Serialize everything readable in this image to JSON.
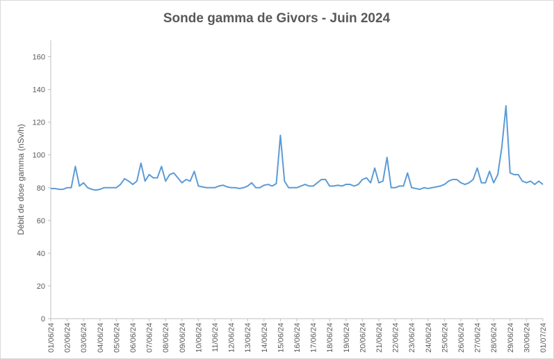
{
  "chart_data": {
    "type": "line",
    "title": "Sonde gamma de Givors - Juin 2024",
    "y_label": "Débit de dose gamma (nSv/h)",
    "x": [
      0,
      0.25,
      0.5,
      0.75,
      1,
      1.25,
      1.5,
      1.75,
      2,
      2.25,
      2.5,
      2.75,
      3,
      3.25,
      3.5,
      3.75,
      4,
      4.25,
      4.5,
      4.75,
      5,
      5.25,
      5.5,
      5.75,
      6,
      6.25,
      6.5,
      6.75,
      7,
      7.25,
      7.5,
      7.75,
      8,
      8.25,
      8.5,
      8.75,
      9,
      9.25,
      9.5,
      9.75,
      10,
      10.25,
      10.5,
      10.75,
      11,
      11.25,
      11.5,
      11.75,
      12,
      12.25,
      12.5,
      12.75,
      13,
      13.25,
      13.5,
      13.75,
      14,
      14.25,
      14.5,
      14.75,
      15,
      15.25,
      15.5,
      15.75,
      16,
      16.25,
      16.5,
      16.75,
      17,
      17.25,
      17.5,
      17.75,
      18,
      18.25,
      18.5,
      18.75,
      19,
      19.25,
      19.5,
      19.75,
      20,
      20.25,
      20.5,
      20.75,
      21,
      21.25,
      21.5,
      21.75,
      22,
      22.25,
      22.5,
      22.75,
      23,
      23.25,
      23.5,
      23.75,
      24,
      24.25,
      24.5,
      24.75,
      25,
      25.25,
      25.5,
      25.75,
      26,
      26.25,
      26.5,
      26.75,
      27,
      27.25,
      27.5,
      27.75,
      28,
      28.25,
      28.5,
      28.75,
      29,
      29.25,
      29.5,
      29.75,
      30
    ],
    "series": [
      {
        "name": "Débit de dose gamma",
        "color": "#5b9bd5",
        "values": [
          79.5,
          79.5,
          79,
          79,
          80,
          80,
          93,
          81,
          83,
          80,
          79,
          78.5,
          79,
          80,
          80,
          80,
          80,
          82,
          85.5,
          84,
          82,
          84,
          95,
          84,
          88,
          86,
          86,
          93,
          84,
          88,
          89,
          86,
          83,
          85,
          84,
          90,
          81,
          80.5,
          80,
          80,
          80,
          81,
          81.5,
          80.5,
          80,
          80,
          79.5,
          80,
          81,
          83,
          80,
          80,
          81.5,
          82,
          81,
          82.5,
          112,
          84,
          80,
          80,
          80,
          81,
          82,
          81,
          81,
          83,
          85,
          85,
          81,
          81,
          81.5,
          81,
          82,
          82,
          81,
          82,
          85,
          86,
          83,
          92,
          83,
          84,
          98.5,
          80,
          80,
          81,
          81,
          89,
          80,
          79.5,
          79,
          80,
          79.5,
          80,
          80.5,
          81,
          82,
          84,
          85,
          85,
          83,
          82,
          83,
          85,
          92,
          83,
          83,
          90,
          83,
          88,
          105,
          130,
          89,
          88,
          88,
          84,
          83,
          84,
          82,
          84,
          82
        ]
      }
    ],
    "xlim": [
      0,
      30
    ],
    "xticks": [
      {
        "value": 0,
        "label": "01/06/24"
      },
      {
        "value": 1,
        "label": "02/06/24"
      },
      {
        "value": 2,
        "label": "03/06/24"
      },
      {
        "value": 3,
        "label": "04/06/24"
      },
      {
        "value": 4,
        "label": "05/06/24"
      },
      {
        "value": 5,
        "label": "06/06/24"
      },
      {
        "value": 6,
        "label": "07/06/24"
      },
      {
        "value": 7,
        "label": "08/06/24"
      },
      {
        "value": 8,
        "label": "09/06/24"
      },
      {
        "value": 9,
        "label": "10/06/24"
      },
      {
        "value": 10,
        "label": "11/06/24"
      },
      {
        "value": 11,
        "label": "12/06/24"
      },
      {
        "value": 12,
        "label": "13/06/24"
      },
      {
        "value": 13,
        "label": "14/06/24"
      },
      {
        "value": 14,
        "label": "15/06/24"
      },
      {
        "value": 15,
        "label": "16/06/24"
      },
      {
        "value": 16,
        "label": "17/06/24"
      },
      {
        "value": 17,
        "label": "18/06/24"
      },
      {
        "value": 18,
        "label": "19/06/24"
      },
      {
        "value": 19,
        "label": "20/06/24"
      },
      {
        "value": 20,
        "label": "21/06/24"
      },
      {
        "value": 21,
        "label": "22/06/24"
      },
      {
        "value": 22,
        "label": "23/06/24"
      },
      {
        "value": 23,
        "label": "24/06/24"
      },
      {
        "value": 24,
        "label": "25/06/24"
      },
      {
        "value": 25,
        "label": "26/06/24"
      },
      {
        "value": 26,
        "label": "27/06/24"
      },
      {
        "value": 27,
        "label": "28/06/24"
      },
      {
        "value": 28,
        "label": "29/06/24"
      },
      {
        "value": 29,
        "label": "30/06/24"
      },
      {
        "value": 30,
        "label": "01/07/24"
      }
    ],
    "ylim": [
      0,
      170
    ],
    "yticks": [
      0,
      20,
      40,
      60,
      80,
      100,
      120,
      140,
      160
    ],
    "grid": false
  }
}
